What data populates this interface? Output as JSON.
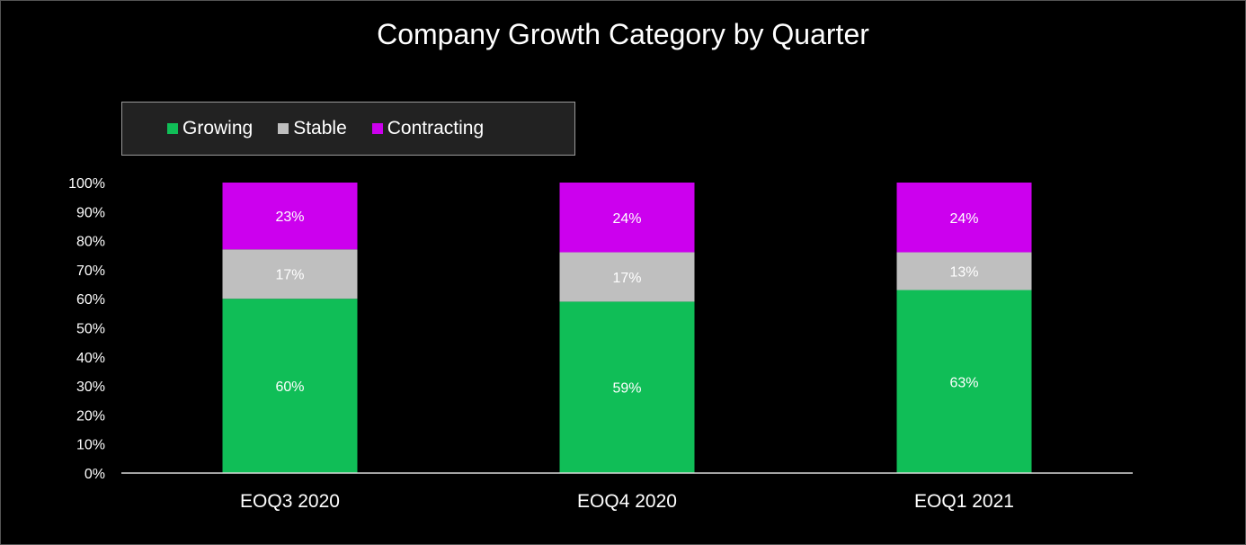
{
  "chart_data": {
    "type": "bar",
    "stacked": true,
    "title": "Company Growth Category by Quarter",
    "categories": [
      "EOQ3 2020",
      "EOQ4 2020",
      "EOQ1 2021"
    ],
    "series": [
      {
        "name": "Growing",
        "color": "#10be57",
        "values": [
          60,
          59,
          63
        ],
        "labels": [
          "60%",
          "59%",
          "63%"
        ]
      },
      {
        "name": "Stable",
        "color": "#bfbfbf",
        "values": [
          17,
          17,
          13
        ],
        "labels": [
          "17%",
          "17%",
          "13%"
        ]
      },
      {
        "name": "Contracting",
        "color": "#cc00ee",
        "values": [
          23,
          24,
          24
        ],
        "labels": [
          "23%",
          "24%",
          "24%"
        ]
      }
    ],
    "ylim": [
      0,
      100
    ],
    "yticks": [
      "0%",
      "10%",
      "20%",
      "30%",
      "40%",
      "50%",
      "60%",
      "70%",
      "80%",
      "90%",
      "100%"
    ],
    "grid": false,
    "legend_position": "top-left"
  }
}
